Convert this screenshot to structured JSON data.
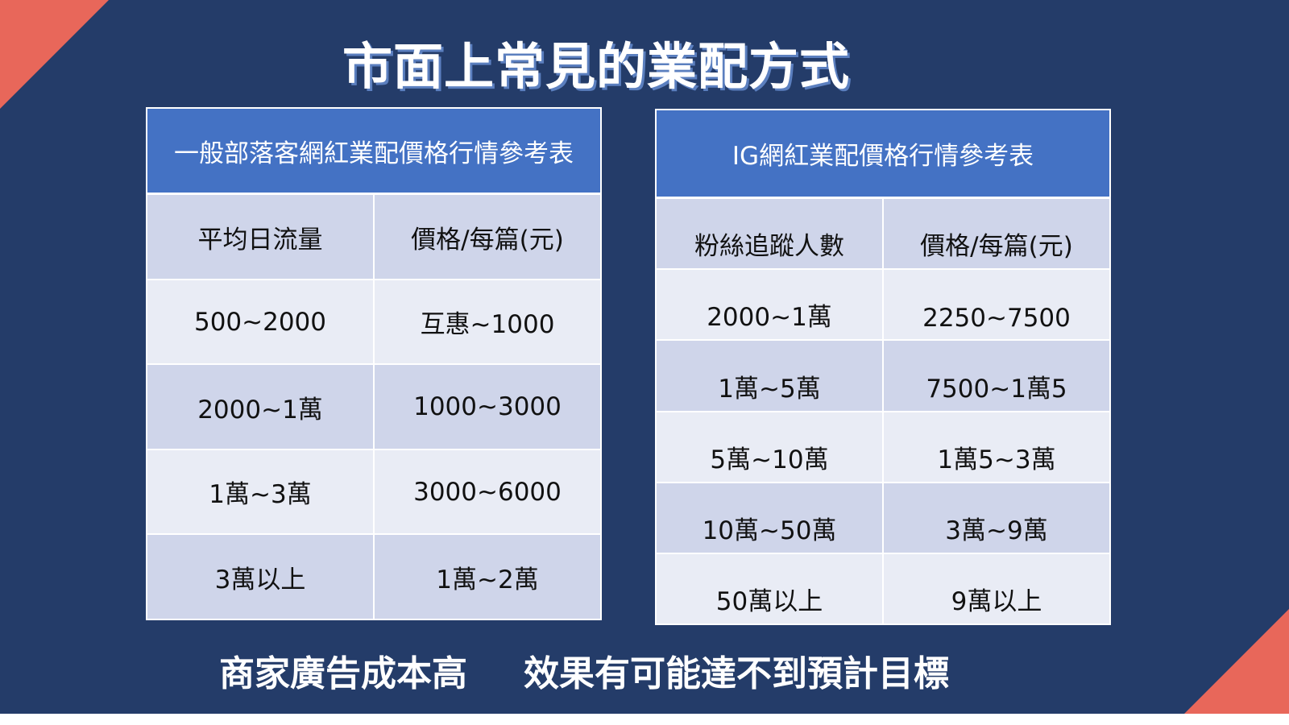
{
  "title": "市面上常見的業配方式",
  "tables": [
    {
      "title": "一般部落客網紅業配價格行情參考表",
      "header": [
        "平均日流量",
        "價格/每篇(元)"
      ],
      "rows": [
        [
          "500~2000",
          "互惠~1000"
        ],
        [
          "2000~1萬",
          "1000~3000"
        ],
        [
          "1萬~3萬",
          "3000~6000"
        ],
        [
          "3萬以上",
          "1萬~2萬"
        ]
      ]
    },
    {
      "title": "IG網紅業配價格行情參考表",
      "header": [
        "粉絲追蹤人數",
        "價格/每篇(元)"
      ],
      "rows": [
        [
          "2000~1萬",
          "2250~7500"
        ],
        [
          "1萬~5萬",
          "7500~1萬5"
        ],
        [
          "5萬~10萬",
          "1萬5~3萬"
        ],
        [
          "10萬~50萬",
          "3萬~9萬"
        ],
        [
          "50萬以上",
          "9萬以上"
        ]
      ]
    }
  ],
  "footer": [
    "商家廣告成本高",
    "效果有可能達不到預計目標"
  ]
}
